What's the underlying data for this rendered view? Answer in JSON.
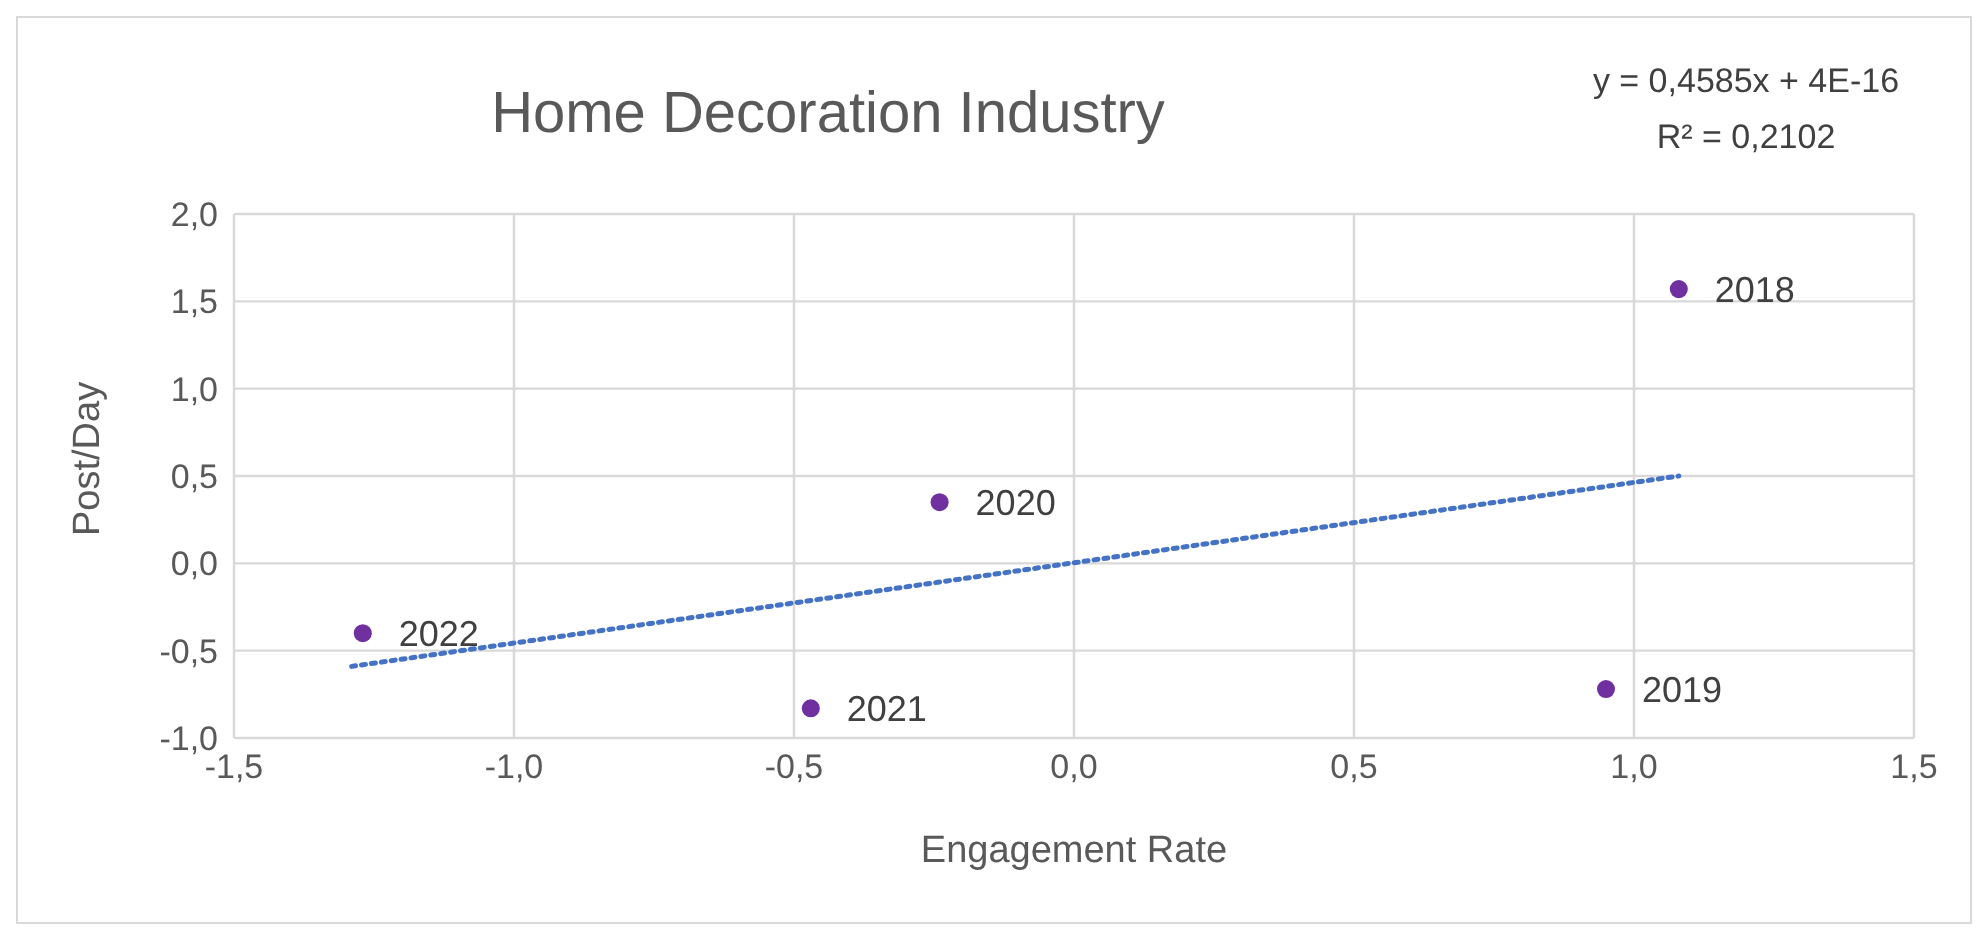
{
  "chart_data": {
    "type": "scatter",
    "title": "Home Decoration Industry",
    "xlabel": "Engagement Rate",
    "ylabel": "Post/Day",
    "xlim": [
      -1.5,
      1.5
    ],
    "xticks": [
      {
        "value": -1.5,
        "label": "-1,5"
      },
      {
        "value": -1,
        "label": "-1,0"
      },
      {
        "value": -0.5,
        "label": "-0,5"
      },
      {
        "value": 0,
        "label": "0,0"
      },
      {
        "value": 0.5,
        "label": "0,5"
      },
      {
        "value": 1,
        "label": "1,0"
      },
      {
        "value": 1.5,
        "label": "1,5"
      }
    ],
    "ylim": [
      -1,
      2
    ],
    "yticks": [
      {
        "value": -1,
        "label": "-1,0"
      },
      {
        "value": -0.5,
        "label": "-0,5"
      },
      {
        "value": 0,
        "label": "0,0"
      },
      {
        "value": 0.5,
        "label": "0,5"
      },
      {
        "value": 1,
        "label": "1,0"
      },
      {
        "value": 1.5,
        "label": "1,5"
      },
      {
        "value": 2,
        "label": "2,0"
      }
    ],
    "grid": true,
    "marker": "circle",
    "series": [
      {
        "type": "scatter",
        "color": "#7030a0",
        "x": [
          1.08,
          0.95,
          -0.24,
          -0.47,
          -1.27
        ],
        "values": [
          1.57,
          -0.72,
          0.35,
          -0.83,
          -0.4
        ]
      },
      {
        "type": "line",
        "color": "#4472c4",
        "line_style": "dotted",
        "marker": "none",
        "x": [
          -1.29,
          1.08
        ],
        "values": [
          -0.59,
          0.5
        ]
      }
    ],
    "annotations": [
      {
        "text": "2018",
        "x": 1.08,
        "y": 1.57
      },
      {
        "text": "2019",
        "x": 0.95,
        "y": -0.72
      },
      {
        "text": "2020",
        "x": -0.24,
        "y": 0.35
      },
      {
        "text": "2021",
        "x": -0.47,
        "y": -0.83
      },
      {
        "text": "2022",
        "x": -1.27,
        "y": -0.4
      },
      "y = 0,4585x + 4E-16\nR² = 0,2102"
    ]
  }
}
